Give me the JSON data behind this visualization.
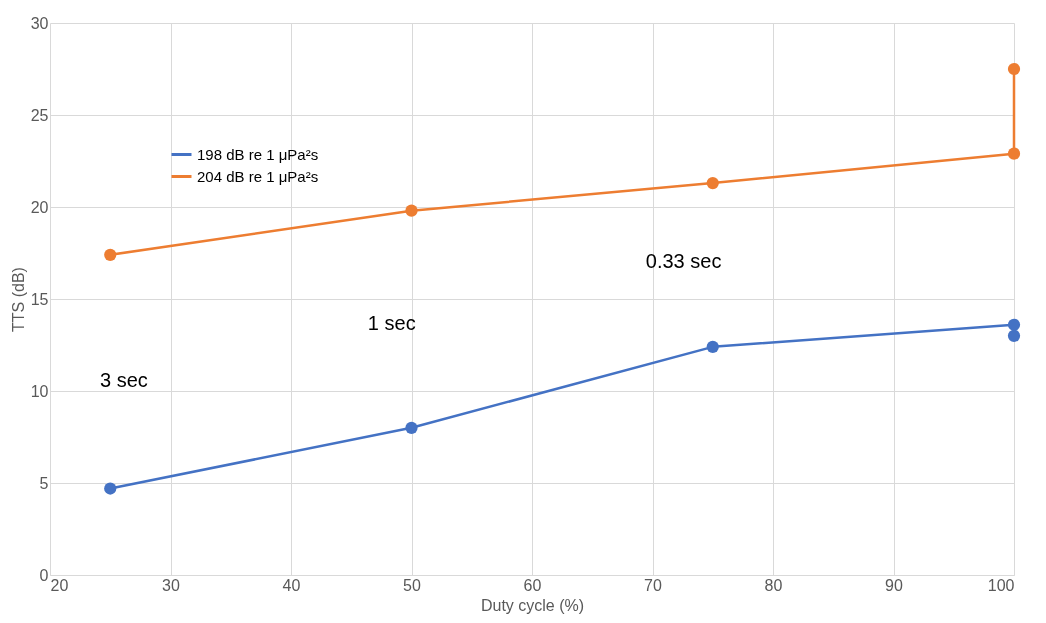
{
  "chart_data": {
    "type": "line",
    "xlabel": "Duty cycle (%)",
    "ylabel": "TTS (dB)",
    "series": [
      {
        "name": "198 dB re 1 μPa²s",
        "color": "#4472c4",
        "x": [
          25,
          50,
          75,
          100,
          100
        ],
        "values": [
          4.7,
          8.0,
          12.4,
          13.6,
          13.0
        ]
      },
      {
        "name": "204 dB re 1 μPa²s",
        "color": "#ed7d31",
        "x": [
          25,
          50,
          75,
          100,
          100
        ],
        "values": [
          17.4,
          19.8,
          21.3,
          22.9,
          27.5
        ]
      }
    ],
    "annotations": [
      "3 sec",
      "1 sec",
      "0.33 sec"
    ],
    "xlim": [
      20,
      100
    ],
    "xticks": [
      20,
      30,
      40,
      50,
      60,
      70,
      80,
      90,
      100
    ],
    "ylim": [
      0,
      30
    ],
    "yticks": [
      0,
      5,
      10,
      15,
      20,
      25,
      30
    ],
    "grid": true,
    "legend": "top left",
    "marker": "circle",
    "line_style": "solid"
  }
}
